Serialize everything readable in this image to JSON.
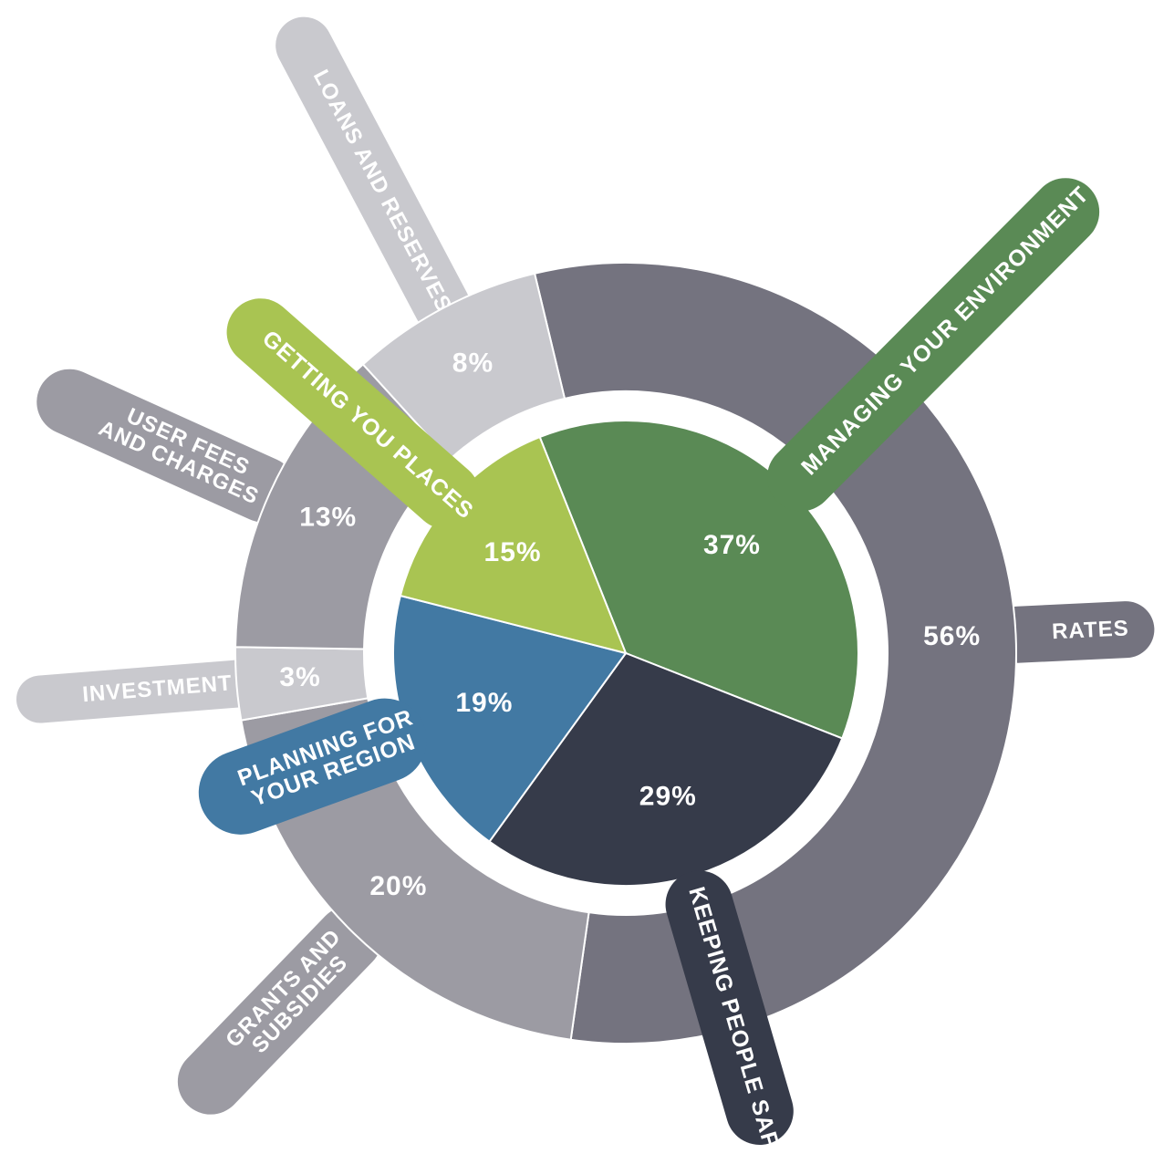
{
  "chart_data": {
    "type": "sunburst",
    "series": [
      {
        "categories": [
          [
            "MANAGING YOUR ENVIRONMENT"
          ],
          [
            "KEEPING PEOPLE SAFE"
          ],
          [
            "PLANNING FOR",
            "YOUR REGION"
          ],
          [
            "GETTING YOU PLACES"
          ]
        ],
        "values": [
          37,
          29,
          19,
          15
        ],
        "value_labels": [
          "37%",
          "29%",
          "19%",
          "15%"
        ],
        "colors": [
          "#5a8a55",
          "#363b4a",
          "#4279a3",
          "#a9c452"
        ]
      },
      {
        "categories": [
          [
            "RATES"
          ],
          [
            "GRANTS AND",
            "SUBSIDIES"
          ],
          [
            "INVESTMENT"
          ],
          [
            "USER FEES",
            "AND CHARGES"
          ],
          [
            "LOANS AND RESERVES"
          ]
        ],
        "values": [
          56,
          20,
          3,
          13,
          8
        ],
        "value_labels": [
          "56%",
          "20%",
          "3%",
          "13%",
          "8%"
        ],
        "colors": [
          "#74737f",
          "#9c9ba3",
          "#c9c9ce",
          "#9c9ba3",
          "#c9c9ce"
        ]
      }
    ]
  }
}
